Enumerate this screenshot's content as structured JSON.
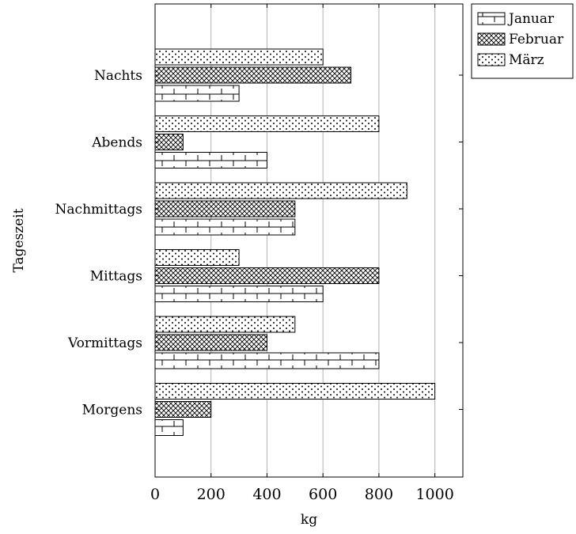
{
  "chart_data": {
    "type": "bar",
    "orientation": "horizontal",
    "categories": [
      "Morgens",
      "Vormittags",
      "Mittags",
      "Nachmittags",
      "Abends",
      "Nachts"
    ],
    "series": [
      {
        "name": "Januar",
        "values": [
          100,
          800,
          600,
          500,
          400,
          300
        ],
        "pattern": "bricks"
      },
      {
        "name": "Februar",
        "values": [
          200,
          400,
          800,
          500,
          100,
          700
        ],
        "pattern": "crosshatch"
      },
      {
        "name": "März",
        "values": [
          1000,
          500,
          300,
          900,
          800,
          600
        ],
        "pattern": "dots"
      }
    ],
    "xlabel": "kg",
    "ylabel": "Tageszeit",
    "xlim": [
      0,
      1100
    ],
    "xticks": [
      0,
      200,
      400,
      600,
      800,
      1000
    ],
    "grid": "vertical major",
    "legend_position": "outside top-right"
  }
}
